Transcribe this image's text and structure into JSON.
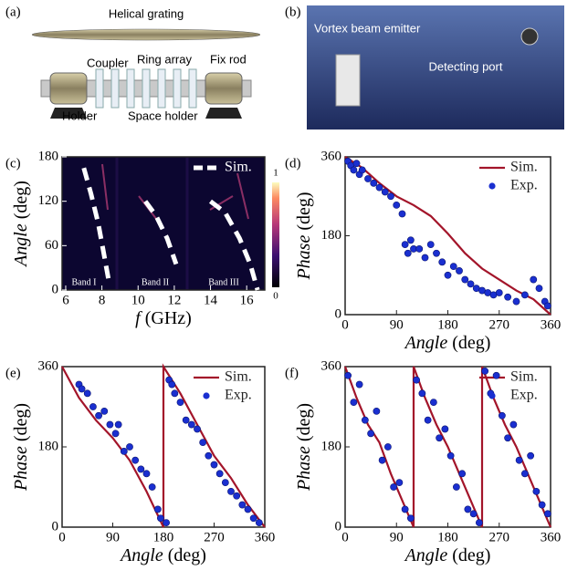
{
  "photos": [
    {
      "panel_label": "(a)",
      "labels": [
        "Helical grating",
        "Coupler",
        "Ring array",
        "Fix rod",
        "Holder",
        "Space holder"
      ]
    },
    {
      "panel_label": "(b)",
      "labels": [
        "Vortex beam emitter",
        "Detecting port"
      ]
    }
  ],
  "chart_data": [
    {
      "type": "heatmap",
      "panel_label": "(c)",
      "xlabel": "f",
      "xlabel_unit": "(GHz)",
      "ylabel": "Angle",
      "ylabel_unit": "(deg)",
      "xlim": [
        5.8,
        17
      ],
      "xticks": [
        6,
        8,
        10,
        12,
        14,
        16
      ],
      "ylim": [
        0,
        180
      ],
      "yticks": [
        0,
        60,
        120,
        180
      ],
      "colorbar_ticks": [
        0,
        1
      ],
      "annotations": [
        "Band I",
        "Band II",
        "Band III"
      ],
      "legend": "top-right",
      "series": [
        {
          "name": "Sim.",
          "color": "#ffffff",
          "style": "dashed",
          "x": [
            7.0,
            7.4,
            7.8,
            8.1,
            8.4,
            null,
            10.4,
            11.0,
            11.6,
            12.1,
            null,
            14.0,
            14.8,
            15.6,
            16.2,
            16.6
          ],
          "values": [
            165,
            130,
            90,
            50,
            10,
            null,
            120,
            100,
            70,
            35,
            null,
            120,
            105,
            70,
            35,
            0
          ]
        }
      ]
    },
    {
      "type": "scatter",
      "panel_label": "(d)",
      "xlabel": "Angle",
      "xlabel_unit": "(deg)",
      "ylabel": "Phase",
      "ylabel_unit": "(deg)",
      "xlim": [
        0,
        360
      ],
      "xticks": [
        0,
        90,
        180,
        270,
        360
      ],
      "ylim": [
        0,
        360
      ],
      "yticks": [
        0,
        180,
        360
      ],
      "legend": "top-right",
      "series": [
        {
          "name": "Sim.",
          "color": "#a3152a",
          "style": "line",
          "x": [
            0,
            30,
            60,
            90,
            120,
            150,
            180,
            210,
            240,
            270,
            300,
            330,
            360
          ],
          "values": [
            360,
            335,
            300,
            270,
            250,
            225,
            185,
            140,
            105,
            80,
            55,
            35,
            0
          ]
        },
        {
          "name": "Exp.",
          "color": "#1a2fd0",
          "style": "markers",
          "x": [
            5,
            10,
            15,
            20,
            25,
            30,
            40,
            50,
            60,
            70,
            80,
            90,
            100,
            105,
            110,
            115,
            120,
            130,
            140,
            150,
            160,
            170,
            180,
            190,
            200,
            210,
            220,
            230,
            240,
            250,
            260,
            270,
            285,
            300,
            315,
            330,
            340,
            350,
            355
          ],
          "values": [
            350,
            340,
            330,
            345,
            320,
            330,
            310,
            300,
            290,
            280,
            270,
            250,
            230,
            160,
            140,
            170,
            150,
            150,
            130,
            160,
            140,
            120,
            90,
            110,
            100,
            80,
            70,
            60,
            55,
            50,
            45,
            50,
            40,
            30,
            45,
            80,
            60,
            30,
            20
          ]
        }
      ]
    },
    {
      "type": "scatter",
      "panel_label": "(e)",
      "xlabel": "Angle",
      "xlabel_unit": "(deg)",
      "ylabel": "Phase",
      "ylabel_unit": "(deg)",
      "xlim": [
        0,
        360
      ],
      "xticks": [
        0,
        90,
        180,
        270,
        360
      ],
      "ylim": [
        0,
        360
      ],
      "yticks": [
        0,
        180,
        360
      ],
      "legend": "top-right",
      "series": [
        {
          "name": "Sim.",
          "color": "#a3152a",
          "style": "line",
          "x": [
            0,
            30,
            60,
            90,
            120,
            150,
            180,
            180,
            210,
            240,
            270,
            300,
            330,
            360
          ],
          "values": [
            360,
            290,
            240,
            200,
            150,
            80,
            0,
            360,
            300,
            230,
            160,
            110,
            50,
            0
          ]
        },
        {
          "name": "Exp.",
          "color": "#1a2fd0",
          "style": "markers",
          "x": [
            30,
            35,
            45,
            55,
            65,
            75,
            85,
            95,
            100,
            110,
            120,
            130,
            140,
            150,
            160,
            170,
            175,
            185,
            190,
            195,
            200,
            210,
            220,
            230,
            240,
            250,
            260,
            270,
            280,
            290,
            300,
            310,
            320,
            330,
            340,
            350
          ],
          "values": [
            320,
            310,
            300,
            270,
            250,
            260,
            230,
            210,
            230,
            170,
            180,
            150,
            130,
            120,
            90,
            40,
            20,
            10,
            330,
            320,
            300,
            280,
            240,
            230,
            220,
            190,
            160,
            140,
            120,
            100,
            80,
            70,
            50,
            40,
            20,
            10
          ]
        }
      ]
    },
    {
      "type": "scatter",
      "panel_label": "(f)",
      "xlabel": "Angle",
      "xlabel_unit": "(deg)",
      "ylabel": "Phase",
      "ylabel_unit": "(deg)",
      "xlim": [
        0,
        360
      ],
      "xticks": [
        0,
        90,
        180,
        270,
        360
      ],
      "ylim": [
        0,
        360
      ],
      "yticks": [
        0,
        180,
        360
      ],
      "legend": "top-right",
      "series": [
        {
          "name": "Sim.",
          "color": "#a3152a",
          "style": "line",
          "x": [
            0,
            20,
            40,
            60,
            80,
            100,
            120,
            120,
            140,
            160,
            180,
            200,
            220,
            240,
            240,
            260,
            280,
            300,
            320,
            340,
            360
          ],
          "values": [
            360,
            290,
            230,
            190,
            120,
            60,
            0,
            360,
            290,
            230,
            180,
            120,
            60,
            0,
            360,
            290,
            230,
            180,
            120,
            60,
            0
          ]
        },
        {
          "name": "Exp.",
          "color": "#1a2fd0",
          "style": "markers",
          "x": [
            5,
            15,
            25,
            35,
            45,
            55,
            65,
            75,
            85,
            95,
            105,
            115,
            125,
            135,
            145,
            155,
            165,
            175,
            185,
            195,
            205,
            215,
            225,
            235,
            245,
            255,
            265,
            275,
            285,
            295,
            305,
            315,
            325,
            335,
            345,
            355
          ],
          "values": [
            340,
            280,
            320,
            240,
            210,
            260,
            150,
            180,
            90,
            100,
            40,
            20,
            330,
            300,
            240,
            280,
            200,
            220,
            160,
            90,
            120,
            40,
            30,
            10,
            350,
            300,
            340,
            250,
            200,
            230,
            150,
            120,
            160,
            80,
            50,
            30
          ]
        }
      ]
    }
  ]
}
